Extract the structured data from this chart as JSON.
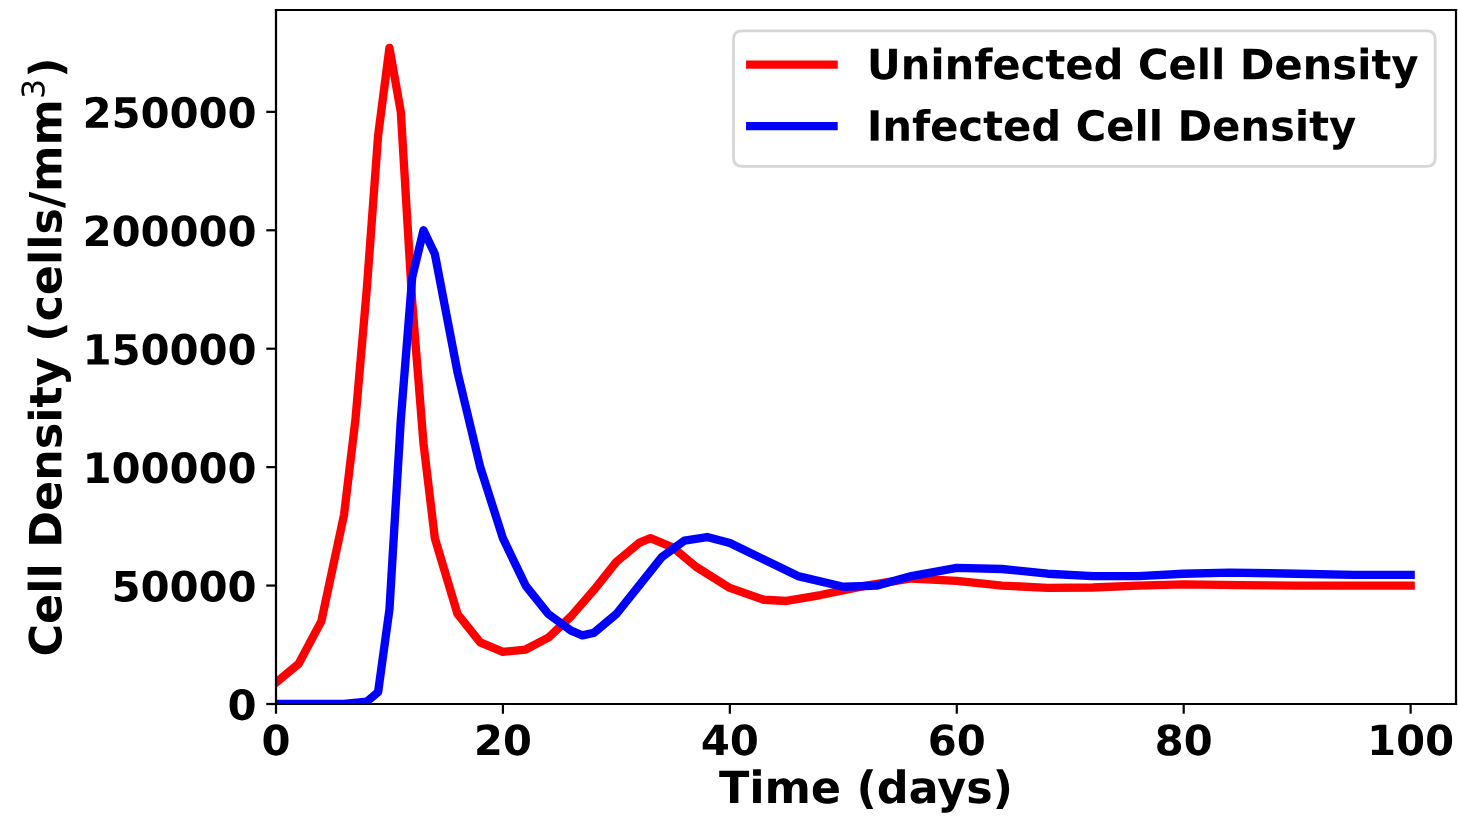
{
  "chart_data": {
    "type": "line",
    "xlabel": "Time (days)",
    "ylabel": "Cell Density (cells/mm$^{3}$)",
    "xlim": [
      0,
      104
    ],
    "ylim": [
      0,
      293000
    ],
    "xticks": [
      0,
      20,
      40,
      60,
      80,
      100
    ],
    "yticks": [
      0,
      50000,
      100000,
      150000,
      200000,
      250000
    ],
    "grid": false,
    "legend": "top right",
    "line_style": "solid",
    "marker": "none",
    "series": [
      {
        "name": "Uninfected Cell Density",
        "color": "#ff0000",
        "x": [
          0,
          2,
          4,
          6,
          7,
          8,
          9,
          10,
          11,
          12,
          13,
          14,
          16,
          18,
          20,
          22,
          24,
          26,
          28,
          30,
          32,
          33,
          35,
          37,
          40,
          43,
          45,
          48,
          52,
          56,
          60,
          64,
          68,
          72,
          76,
          80,
          85,
          90,
          95,
          100
        ],
        "values": [
          9000,
          17000,
          35000,
          80000,
          120000,
          175000,
          240000,
          277000,
          250000,
          170000,
          110000,
          70000,
          38000,
          26000,
          22000,
          23000,
          28000,
          37000,
          48000,
          60000,
          68000,
          70000,
          66000,
          58000,
          49000,
          44000,
          43500,
          46000,
          50000,
          53000,
          52000,
          50000,
          49000,
          49200,
          50000,
          50500,
          50200,
          50000,
          50000,
          50000
        ]
      },
      {
        "name": "Infected Cell Density",
        "color": "#0000ff",
        "x": [
          0,
          6,
          8,
          9,
          10,
          11,
          12,
          13,
          14,
          15,
          16,
          18,
          20,
          22,
          24,
          26,
          27,
          28,
          30,
          32,
          34,
          36,
          38,
          40,
          43,
          46,
          50,
          53,
          56,
          60,
          64,
          68,
          72,
          76,
          80,
          84,
          90,
          95,
          100
        ],
        "values": [
          0,
          0,
          1000,
          5000,
          40000,
          120000,
          180000,
          200000,
          190000,
          165000,
          140000,
          100000,
          70000,
          50000,
          38000,
          31000,
          29000,
          30000,
          38000,
          50000,
          62000,
          69000,
          70500,
          68000,
          61000,
          54000,
          49500,
          50000,
          54000,
          57500,
          57000,
          55000,
          54000,
          54000,
          55000,
          55500,
          55000,
          54500,
          54500
        ]
      }
    ]
  }
}
